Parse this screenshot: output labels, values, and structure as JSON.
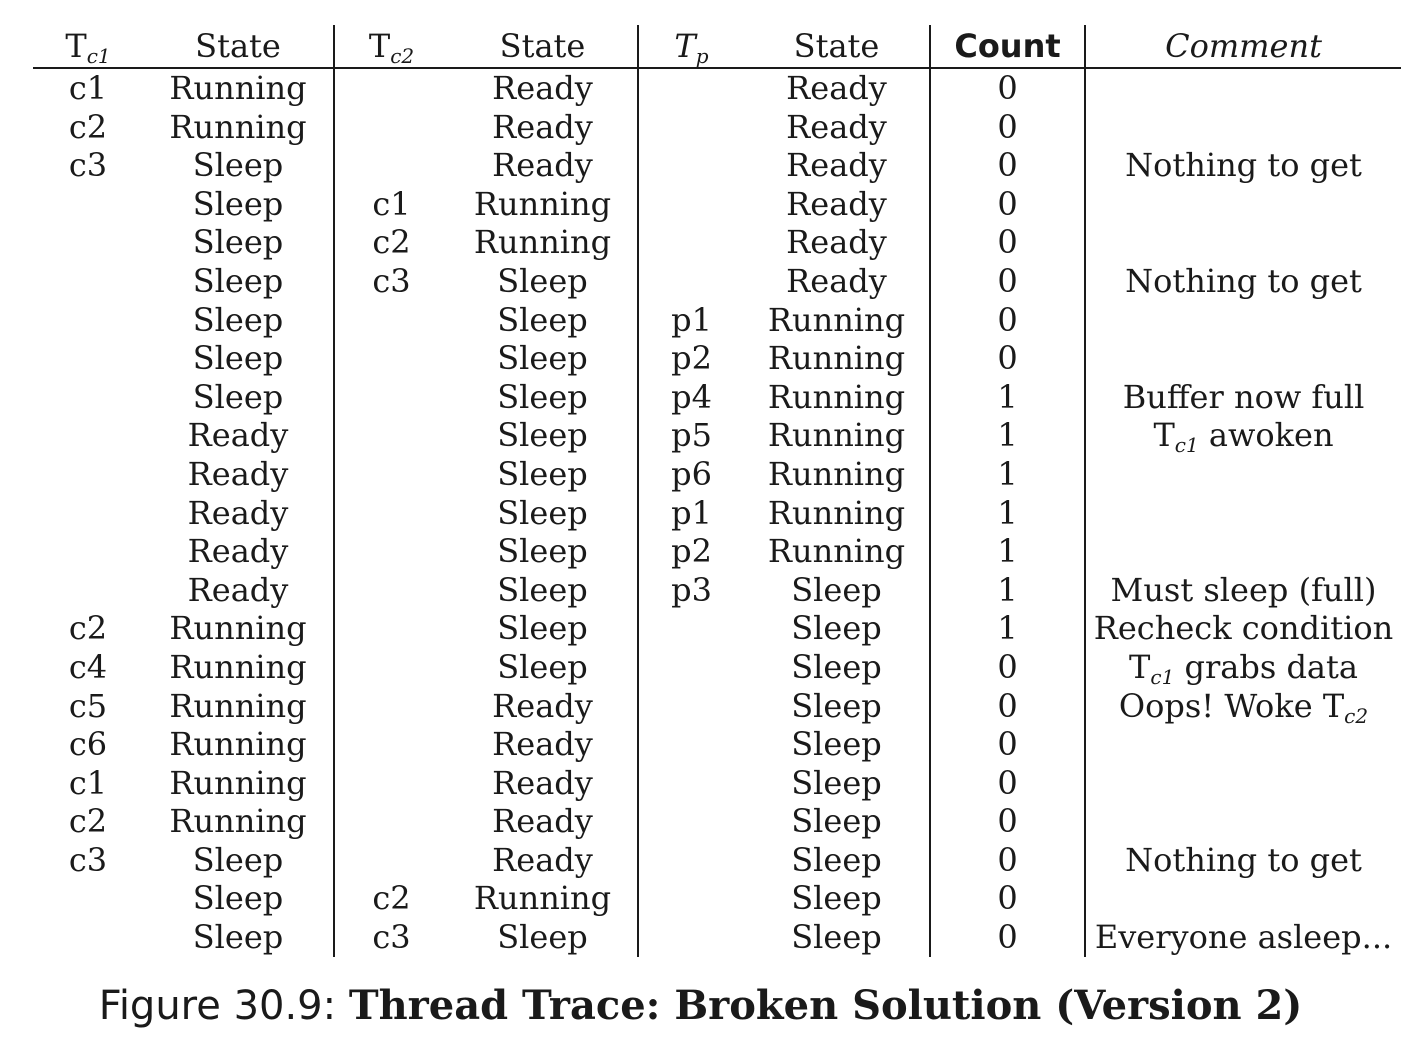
{
  "headers": {
    "tc1_base": "T",
    "tc1_sub": "c1",
    "state1": "State",
    "tc2_base": "T",
    "tc2_sub": "c2",
    "state2": "State",
    "tp_base": "T",
    "tp_sub": "p",
    "state3": "State",
    "count": "Count",
    "comment": "Comment"
  },
  "rows": [
    {
      "tc1": "c1",
      "s1": "Running",
      "tc2": "",
      "s2": "Ready",
      "tp": "",
      "s3": "Ready",
      "count": "0",
      "comment": ""
    },
    {
      "tc1": "c2",
      "s1": "Running",
      "tc2": "",
      "s2": "Ready",
      "tp": "",
      "s3": "Ready",
      "count": "0",
      "comment": ""
    },
    {
      "tc1": "c3",
      "s1": "Sleep",
      "tc2": "",
      "s2": "Ready",
      "tp": "",
      "s3": "Ready",
      "count": "0",
      "comment": "Nothing to get"
    },
    {
      "tc1": "",
      "s1": "Sleep",
      "tc2": "c1",
      "s2": "Running",
      "tp": "",
      "s3": "Ready",
      "count": "0",
      "comment": ""
    },
    {
      "tc1": "",
      "s1": "Sleep",
      "tc2": "c2",
      "s2": "Running",
      "tp": "",
      "s3": "Ready",
      "count": "0",
      "comment": ""
    },
    {
      "tc1": "",
      "s1": "Sleep",
      "tc2": "c3",
      "s2": "Sleep",
      "tp": "",
      "s3": "Ready",
      "count": "0",
      "comment": "Nothing to get"
    },
    {
      "tc1": "",
      "s1": "Sleep",
      "tc2": "",
      "s2": "Sleep",
      "tp": "p1",
      "s3": "Running",
      "count": "0",
      "comment": ""
    },
    {
      "tc1": "",
      "s1": "Sleep",
      "tc2": "",
      "s2": "Sleep",
      "tp": "p2",
      "s3": "Running",
      "count": "0",
      "comment": ""
    },
    {
      "tc1": "",
      "s1": "Sleep",
      "tc2": "",
      "s2": "Sleep",
      "tp": "p4",
      "s3": "Running",
      "count": "1",
      "comment": "Buffer now full"
    },
    {
      "tc1": "",
      "s1": "Ready",
      "tc2": "",
      "s2": "Sleep",
      "tp": "p5",
      "s3": "Running",
      "count": "1",
      "comment": "",
      "comment_base": "T",
      "comment_sub": "c1",
      "comment_after": " awoken"
    },
    {
      "tc1": "",
      "s1": "Ready",
      "tc2": "",
      "s2": "Sleep",
      "tp": "p6",
      "s3": "Running",
      "count": "1",
      "comment": ""
    },
    {
      "tc1": "",
      "s1": "Ready",
      "tc2": "",
      "s2": "Sleep",
      "tp": "p1",
      "s3": "Running",
      "count": "1",
      "comment": ""
    },
    {
      "tc1": "",
      "s1": "Ready",
      "tc2": "",
      "s2": "Sleep",
      "tp": "p2",
      "s3": "Running",
      "count": "1",
      "comment": ""
    },
    {
      "tc1": "",
      "s1": "Ready",
      "tc2": "",
      "s2": "Sleep",
      "tp": "p3",
      "s3": "Sleep",
      "count": "1",
      "comment": "Must sleep (full)"
    },
    {
      "tc1": "c2",
      "s1": "Running",
      "tc2": "",
      "s2": "Sleep",
      "tp": "",
      "s3": "Sleep",
      "count": "1",
      "comment": "Recheck condition"
    },
    {
      "tc1": "c4",
      "s1": "Running",
      "tc2": "",
      "s2": "Sleep",
      "tp": "",
      "s3": "Sleep",
      "count": "0",
      "comment": "",
      "comment_base": "T",
      "comment_sub": "c1",
      "comment_after": " grabs data"
    },
    {
      "tc1": "c5",
      "s1": "Running",
      "tc2": "",
      "s2": "Ready",
      "tp": "",
      "s3": "Sleep",
      "count": "0",
      "comment": "",
      "comment_before": "Oops! Woke ",
      "comment_base": "T",
      "comment_sub": "c2"
    },
    {
      "tc1": "c6",
      "s1": "Running",
      "tc2": "",
      "s2": "Ready",
      "tp": "",
      "s3": "Sleep",
      "count": "0",
      "comment": ""
    },
    {
      "tc1": "c1",
      "s1": "Running",
      "tc2": "",
      "s2": "Ready",
      "tp": "",
      "s3": "Sleep",
      "count": "0",
      "comment": ""
    },
    {
      "tc1": "c2",
      "s1": "Running",
      "tc2": "",
      "s2": "Ready",
      "tp": "",
      "s3": "Sleep",
      "count": "0",
      "comment": ""
    },
    {
      "tc1": "c3",
      "s1": "Sleep",
      "tc2": "",
      "s2": "Ready",
      "tp": "",
      "s3": "Sleep",
      "count": "0",
      "comment": "Nothing to get"
    },
    {
      "tc1": "",
      "s1": "Sleep",
      "tc2": "c2",
      "s2": "Running",
      "tp": "",
      "s3": "Sleep",
      "count": "0",
      "comment": ""
    },
    {
      "tc1": "",
      "s1": "Sleep",
      "tc2": "c3",
      "s2": "Sleep",
      "tp": "",
      "s3": "Sleep",
      "count": "0",
      "comment": "Everyone asleep..."
    }
  ],
  "caption": {
    "prefix": "Figure 30.9: ",
    "title": "Thread Trace: Broken Solution (Version 2)"
  }
}
